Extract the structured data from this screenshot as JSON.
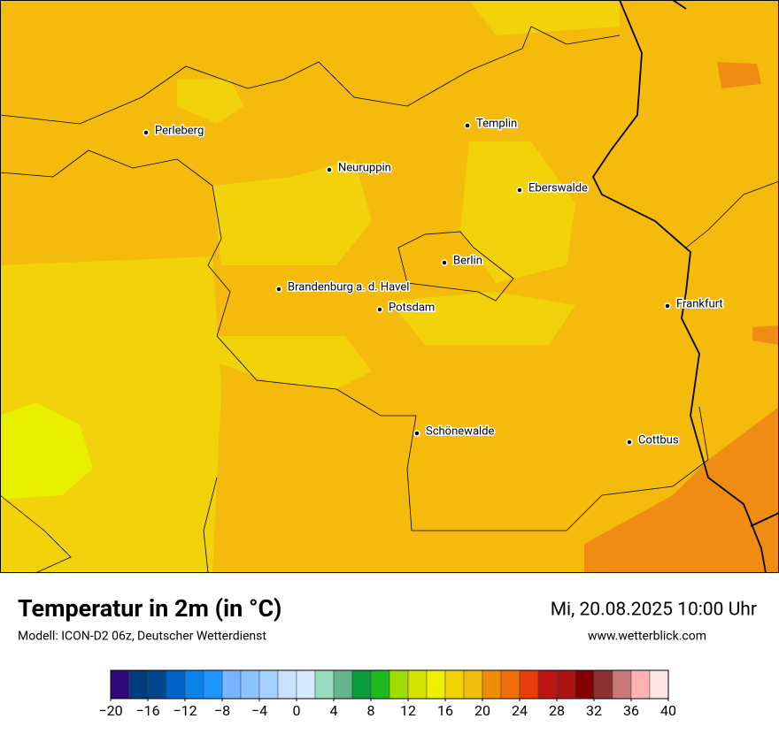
{
  "title": "Temperatur in 2m (in °C)",
  "subtitle": "Modell: ICON-D2 06z, Deutscher Wetterdienst",
  "date": "Mi, 20.08.2025 10:00 Uhr",
  "website": "www.wetterblick.com",
  "cities": [
    "Perleberg",
    "Neuruppin",
    "Templin",
    "Eberswalde",
    "Berlin",
    "Brandenburg a. d. Havel",
    "Potsdam",
    "Frankfurt",
    "Schönewalde",
    "Cottbus"
  ],
  "colorbar": {
    "lim": [
      -20,
      40
    ],
    "colors": [
      "#2e0a7a",
      "#003d7d",
      "#00468c",
      "#0064c8",
      "#0a82e6",
      "#1e96ff",
      "#78b4ff",
      "#8cc3ff",
      "#a5d2ff",
      "#c8e1ff",
      "#d7ebff",
      "#96dcbe",
      "#64b48c",
      "#0a9b3c",
      "#1eb91e",
      "#a0dc00",
      "#d2e600",
      "#f0f000",
      "#f0d200",
      "#f0be0a",
      "#f08c0a",
      "#f06e0a",
      "#e63c0a",
      "#be1414",
      "#aa1414",
      "#820000",
      "#8c3232",
      "#c87878",
      "#ffb4b4",
      "#ffe6e6"
    ],
    "ticks": [
      {
        "value": -20,
        "label": "−20"
      },
      {
        "value": -16,
        "label": "−16"
      },
      {
        "value": -12,
        "label": "−12"
      },
      {
        "value": -8,
        "label": "−8"
      },
      {
        "value": -4,
        "label": "−4"
      },
      0,
      4,
      8,
      12,
      16,
      20,
      24,
      28,
      32,
      36,
      40
    ]
  }
}
